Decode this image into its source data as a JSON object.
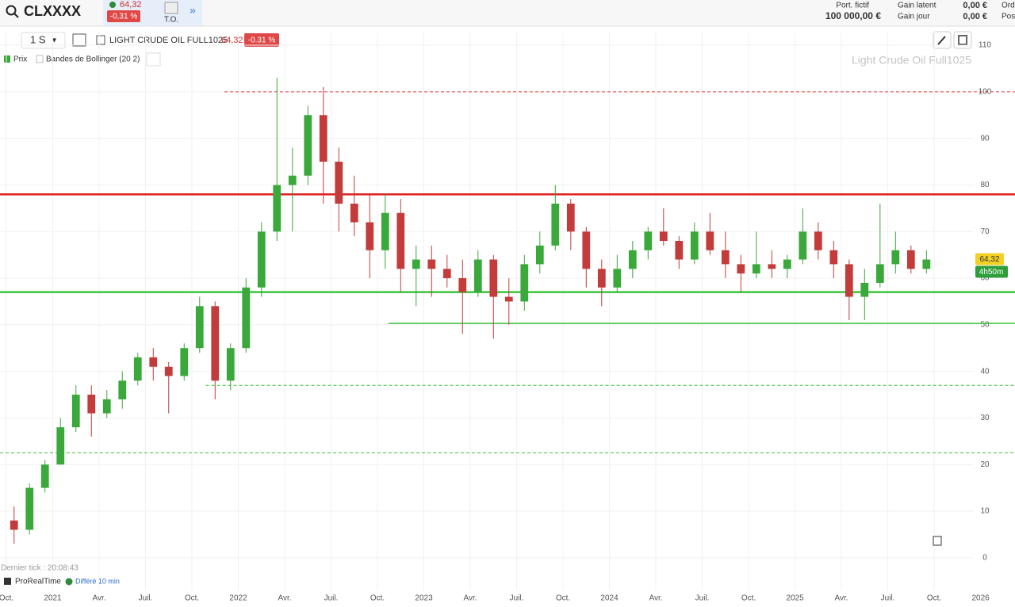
{
  "topbar": {
    "symbol": "CLXXXX",
    "price": "64,32",
    "change": "-0,31 %",
    "to_button": "T.O.",
    "more": "»",
    "portfolio_label": "Port. fictif",
    "portfolio_value": "100 000,00 €",
    "gain_latent_label": "Gain latent",
    "gain_latent_value": "0,00 €",
    "gain_jour_label": "Gain jour",
    "gain_jour_value": "0,00 €",
    "ord": "Ord",
    "pos": "Pos"
  },
  "toolbar": {
    "period": "1 S",
    "instrument": "LIGHT CRUDE OIL FULL1025",
    "price": "64,32",
    "change": "-0.31 %"
  },
  "legend": {
    "price": "Prix",
    "bollinger": "Bandes de Bollinger (20 2)"
  },
  "footer": {
    "last_tick": "Dernier tick : 20:08:43",
    "source": "ProRealTime",
    "delay": "Différé 10 min"
  },
  "chart_data": {
    "type": "candlestick",
    "title": "Light Crude Oil Full1025",
    "last_price_label": "64,32",
    "countdown_label": "4h50m",
    "up_color": "#3aa83a",
    "down_color": "#c33b3b",
    "x": [
      0.5,
      1.5,
      2.5,
      3.5,
      4.5,
      5.5,
      6.5,
      7.5,
      8.5,
      9.5,
      10.5,
      11.5,
      12.5,
      13.5,
      14.5,
      15.5,
      16.5,
      17.5,
      18.5,
      19.5,
      20.5,
      21.5,
      22.5,
      23.5,
      24.5,
      25.5,
      26.5,
      27.5,
      28.5,
      29.5,
      30.5,
      31.5,
      32.5,
      33.5,
      34.5,
      35.5,
      36.5,
      37.5,
      38.5,
      39.5,
      40.5,
      41.5,
      42.5,
      43.5,
      44.5,
      45.5,
      46.5,
      47.5,
      48.5,
      49.5,
      50.5,
      51.5,
      52.5,
      53.5,
      54.5,
      55.5,
      56.5,
      57.5,
      58.5,
      59.5
    ],
    "open": [
      8,
      6,
      15,
      20,
      28,
      35,
      31,
      34,
      38,
      43,
      41,
      39,
      45,
      54,
      38,
      45,
      58,
      70,
      80,
      82,
      95,
      85,
      76,
      72,
      66,
      74,
      62,
      64,
      62,
      60,
      57,
      64,
      56,
      55,
      63,
      67,
      76,
      70,
      62,
      58,
      62,
      66,
      70,
      68,
      64,
      70,
      66,
      63,
      61,
      63,
      62,
      64,
      70,
      66,
      63,
      56,
      59,
      63,
      66,
      62
    ],
    "high": [
      11,
      16,
      21,
      30,
      37,
      37,
      36,
      40,
      44,
      45,
      42,
      46,
      56,
      55,
      46,
      60,
      72,
      103,
      88,
      97,
      101,
      88,
      82,
      78,
      78,
      77,
      67,
      67,
      65,
      64,
      66,
      65,
      60,
      65,
      70,
      80,
      77,
      71,
      64,
      65,
      68,
      71,
      75,
      69,
      72,
      74,
      70,
      65,
      70,
      66,
      65,
      75,
      72,
      68,
      64,
      62,
      76,
      70,
      67,
      66
    ],
    "low": [
      3,
      5,
      14,
      20,
      27,
      26,
      30,
      32,
      37,
      38,
      31,
      38,
      44,
      34,
      36,
      44,
      56,
      68,
      70,
      80,
      76,
      70,
      69,
      60,
      62,
      57,
      54,
      56,
      58,
      48,
      56,
      47,
      50,
      53,
      61,
      66,
      66,
      58,
      54,
      57,
      60,
      64,
      67,
      62,
      63,
      65,
      60,
      57,
      60,
      60,
      60,
      63,
      64,
      60,
      51,
      51,
      58,
      61,
      61,
      61
    ],
    "close": [
      6,
      15,
      20,
      28,
      35,
      31,
      34,
      38,
      43,
      41,
      39,
      45,
      54,
      38,
      45,
      58,
      70,
      80,
      82,
      95,
      85,
      76,
      72,
      66,
      74,
      62,
      64,
      62,
      60,
      57,
      64,
      56,
      55,
      63,
      67,
      76,
      70,
      62,
      58,
      62,
      66,
      70,
      68,
      64,
      70,
      66,
      63,
      61,
      63,
      62,
      64,
      70,
      66,
      63,
      56,
      59,
      63,
      66,
      62,
      64
    ],
    "xlim": [
      -0.41,
      62.56
    ],
    "xticks": [
      {
        "value": 0,
        "label": "Oct."
      },
      {
        "value": 3,
        "label": "2021"
      },
      {
        "value": 6,
        "label": "Avr."
      },
      {
        "value": 9,
        "label": "Juil."
      },
      {
        "value": 12,
        "label": "Oct."
      },
      {
        "value": 15,
        "label": "2022"
      },
      {
        "value": 18,
        "label": "Avr."
      },
      {
        "value": 21,
        "label": "Juil."
      },
      {
        "value": 24,
        "label": "Oct."
      },
      {
        "value": 27,
        "label": "2023"
      },
      {
        "value": 30,
        "label": "Avr."
      },
      {
        "value": 33,
        "label": "Juil."
      },
      {
        "value": 36,
        "label": "Oct."
      },
      {
        "value": 39,
        "label": "2024"
      },
      {
        "value": 42,
        "label": "Avr."
      },
      {
        "value": 45,
        "label": "Juil."
      },
      {
        "value": 48,
        "label": "Oct."
      },
      {
        "value": 51,
        "label": "2025"
      },
      {
        "value": 54,
        "label": "Avr."
      },
      {
        "value": 57,
        "label": "Juil."
      },
      {
        "value": 60,
        "label": "Oct."
      },
      {
        "value": 63,
        "label": "2026"
      }
    ],
    "ylim": [
      -7,
      112.9
    ],
    "yticks": [
      0,
      10,
      20,
      30,
      40,
      50,
      60,
      70,
      80,
      90,
      100,
      110
    ],
    "grid": true,
    "levels": [
      {
        "value": 100,
        "color": "#e04040",
        "style": "dashed",
        "from": 14.1
      },
      {
        "value": 78,
        "color": "#e01e1e",
        "style": "solid"
      },
      {
        "value": 57,
        "color": "#3cc43c",
        "style": "solid"
      },
      {
        "value": 50.3,
        "color": "#3cc43c",
        "style": "solid",
        "from": 24.7
      },
      {
        "value": 37,
        "color": "#3cc43c",
        "style": "dashed",
        "from": 12.9
      },
      {
        "value": 22.5,
        "color": "#3cc43c",
        "style": "dashed"
      }
    ]
  }
}
